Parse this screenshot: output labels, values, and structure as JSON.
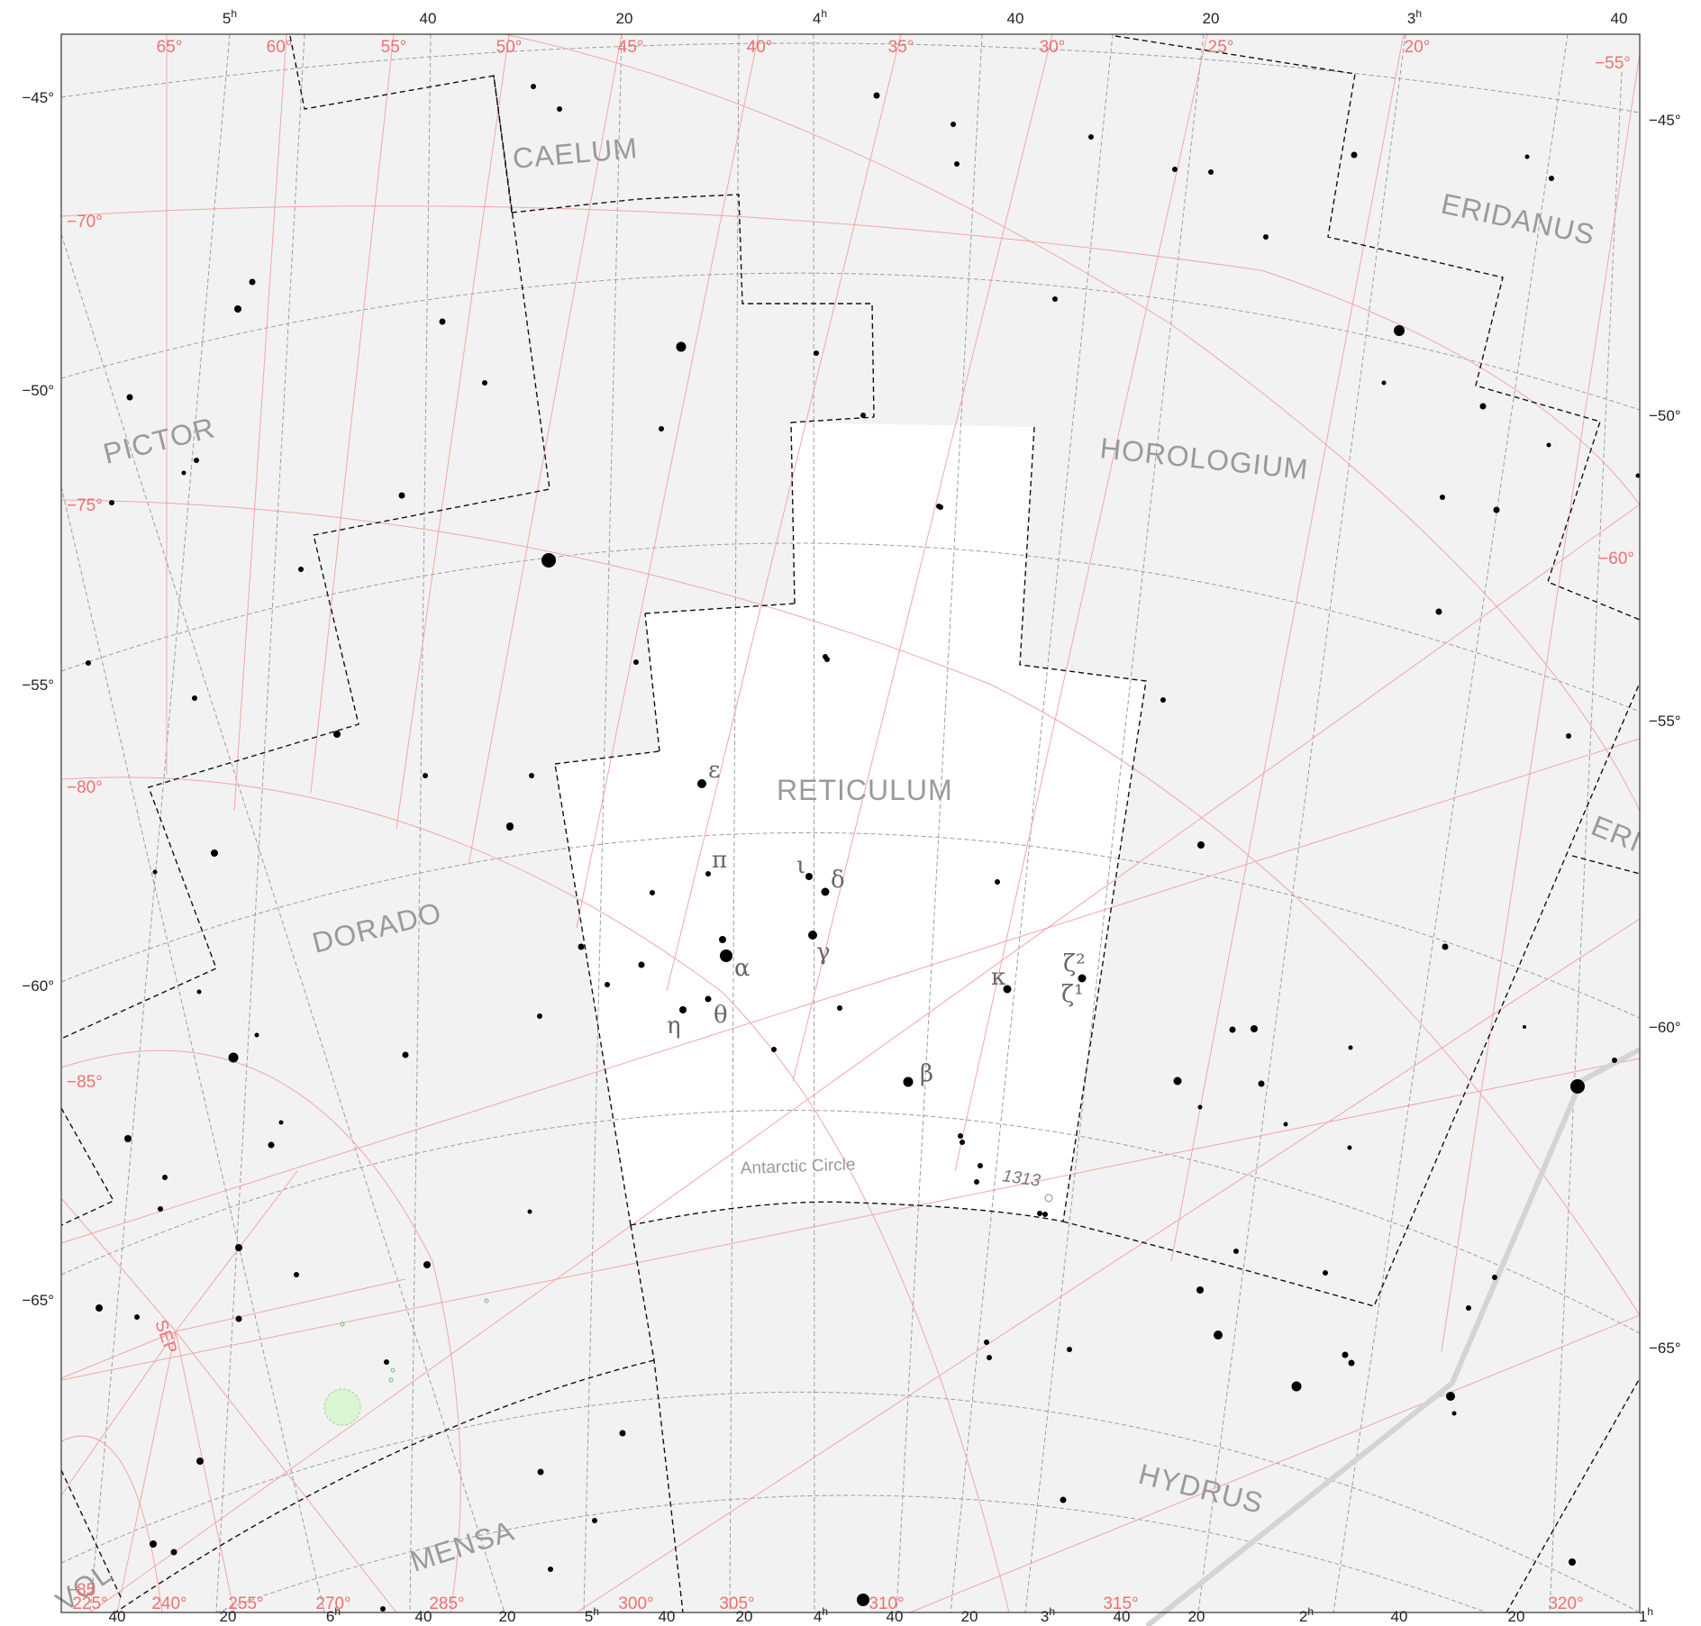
{
  "ra_top_labels": [
    {
      "main": "5",
      "sup": "h"
    },
    {
      "main": "40",
      "sup": ""
    },
    {
      "main": "20",
      "sup": ""
    },
    {
      "main": "4",
      "sup": "h"
    },
    {
      "main": "40",
      "sup": ""
    },
    {
      "main": "20",
      "sup": ""
    },
    {
      "main": "3",
      "sup": "h"
    },
    {
      "main": "40",
      "sup": ""
    }
  ],
  "ra_bottom_labels": [
    {
      "main": "40",
      "sup": ""
    },
    {
      "main": "20",
      "sup": ""
    },
    {
      "main": "6",
      "sup": "h"
    },
    {
      "main": "40",
      "sup": ""
    },
    {
      "main": "20",
      "sup": ""
    },
    {
      "main": "5",
      "sup": "h"
    },
    {
      "main": "40",
      "sup": ""
    },
    {
      "main": "20",
      "sup": ""
    },
    {
      "main": "4",
      "sup": "h"
    },
    {
      "main": "40",
      "sup": ""
    },
    {
      "main": "20",
      "sup": ""
    },
    {
      "main": "3",
      "sup": "h"
    },
    {
      "main": "40",
      "sup": ""
    },
    {
      "main": "20",
      "sup": ""
    },
    {
      "main": "2",
      "sup": "h"
    },
    {
      "main": "40",
      "sup": ""
    },
    {
      "main": "20",
      "sup": ""
    },
    {
      "main": "1",
      "sup": "h"
    }
  ],
  "dec_left_labels": [
    "−45°",
    "−50°",
    "−55°",
    "−60°",
    "−65°"
  ],
  "dec_right_labels": [
    "−45°",
    "−50°",
    "−55°",
    "−60°",
    "−65°"
  ],
  "galactic_top_labels": [
    "65°",
    "60°",
    "55°",
    "50°",
    "45°",
    "40°",
    "35°",
    "30°",
    "25°",
    "20°",
    "−55°"
  ],
  "galactic_left_labels": [
    "−70°",
    "−75°",
    "−80°",
    "−85°",
    "−85"
  ],
  "galactic_right_labels": [
    "−60°"
  ],
  "galactic_bottom_labels": [
    "225°",
    "240°",
    "255°",
    "270°",
    "285°",
    "300°",
    "305°",
    "310°",
    "315°",
    "320°"
  ],
  "constellations": [
    "CAELUM",
    "ERIDANUS",
    "PICTOR",
    "HOROLOGIUM",
    "RETICULUM",
    "DORADO",
    "ERI",
    "HYDRUS",
    "MENSA",
    "VOL"
  ],
  "greek_labels": [
    "ε",
    "π",
    "ι",
    "δ",
    "γ",
    "α",
    "θ",
    "η",
    "β",
    "κ",
    "ζ²",
    "ζ¹"
  ],
  "misc_labels": {
    "antarctic": "Antarctic Circle",
    "sep": "SEP",
    "object": "1313"
  },
  "colors": {
    "background": "#f2f2f2",
    "highlight": "#ffffff",
    "grid": "#9e9e9e",
    "galactic": "#f3a6a6",
    "boundary": "#111111",
    "milky_way": "#d7d7d7",
    "lmc": "#d9f5d2"
  },
  "icons": {
    "star": "filled-black-circle",
    "cluster": "green-circle"
  }
}
